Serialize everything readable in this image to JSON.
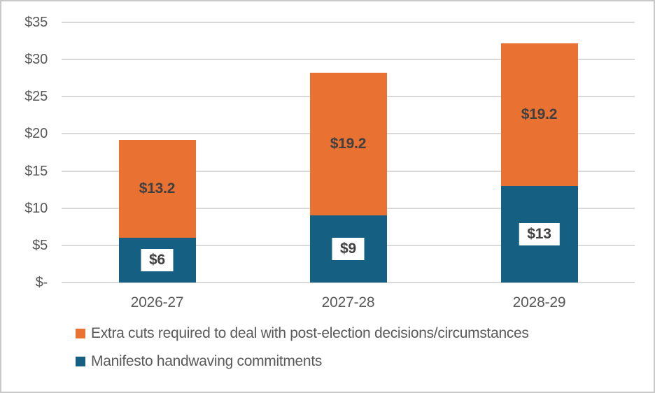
{
  "colors": {
    "orange": "#E97132",
    "blue": "#156082",
    "gridline": "#D9D9D9",
    "axis_text": "#595959",
    "data_label_text": "#404040",
    "canvas_border": "#C9C9C9",
    "label_box_bg": "#FFFFFF"
  },
  "chart_data": {
    "type": "bar",
    "stacked": true,
    "title": "",
    "xlabel": "",
    "ylabel": "",
    "categories": [
      "2026-27",
      "2027-28",
      "2028-29"
    ],
    "series": [
      {
        "name": "Manifesto handwaving commitments",
        "color_key": "blue",
        "values": [
          6,
          9,
          13
        ],
        "data_labels": [
          "$6",
          "$9",
          "$13"
        ],
        "labels_boxed": true
      },
      {
        "name": "Extra cuts required to deal with post-election decisions/circumstances",
        "color_key": "orange",
        "values": [
          13.2,
          19.2,
          19.2
        ],
        "data_labels": [
          "$13.2",
          "$19.2",
          "$19.2"
        ],
        "labels_boxed": false
      }
    ],
    "totals": [
      19.2,
      28.2,
      32.2
    ],
    "ylim": [
      0,
      35
    ],
    "y_ticks": [
      {
        "value": 0,
        "label": "$-"
      },
      {
        "value": 5,
        "label": "$5"
      },
      {
        "value": 10,
        "label": "$10"
      },
      {
        "value": 15,
        "label": "$15"
      },
      {
        "value": 20,
        "label": "$20"
      },
      {
        "value": 25,
        "label": "$25"
      },
      {
        "value": 30,
        "label": "$30"
      },
      {
        "value": 35,
        "label": "$35"
      }
    ],
    "grid": true,
    "legend_position": "bottom-left",
    "legend": [
      {
        "label": "Extra cuts required to deal with post-election decisions/circumstances",
        "color_key": "orange"
      },
      {
        "label": "Manifesto handwaving commitments",
        "color_key": "blue"
      }
    ]
  }
}
